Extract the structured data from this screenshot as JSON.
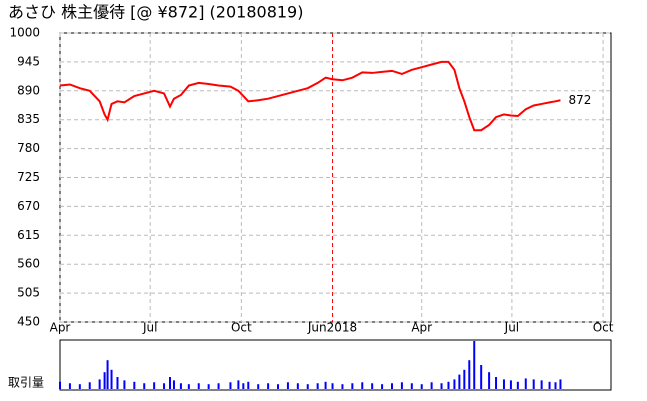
{
  "chart_data": [
    {
      "type": "line",
      "title": "あさひ 株主優待 [@ ¥872] (20180819)",
      "x": [
        0,
        10,
        20,
        30,
        40,
        45,
        48,
        52,
        58,
        65,
        75,
        85,
        95,
        105,
        111,
        115,
        122,
        130,
        140,
        150,
        160,
        172,
        180,
        185,
        190,
        200,
        210,
        220,
        230,
        240,
        250,
        260,
        268,
        275,
        285,
        295,
        305,
        315,
        325,
        335,
        345,
        355,
        365,
        375,
        385,
        392,
        398,
        403,
        408,
        413,
        418,
        425,
        433,
        440,
        448,
        455,
        462,
        470,
        478,
        486,
        494,
        500,
        505
      ],
      "series": [
        {
          "name": "price",
          "color": "#ff0000",
          "values": [
            900,
            902,
            895,
            890,
            870,
            845,
            835,
            865,
            870,
            868,
            880,
            885,
            890,
            885,
            860,
            875,
            882,
            900,
            905,
            903,
            900,
            898,
            890,
            880,
            870,
            872,
            875,
            880,
            885,
            890,
            895,
            905,
            915,
            912,
            910,
            915,
            925,
            924,
            926,
            928,
            922,
            930,
            935,
            940,
            945,
            945,
            930,
            895,
            870,
            840,
            815,
            815,
            825,
            840,
            845,
            843,
            842,
            855,
            862,
            865,
            868,
            870,
            872
          ]
        }
      ],
      "xlim": [
        0,
        556
      ],
      "xticks": [
        {
          "value": 0,
          "label": "Apr"
        },
        {
          "value": 91,
          "label": "Jul"
        },
        {
          "value": 183,
          "label": "Oct"
        },
        {
          "value": 275,
          "label": "Jun2018"
        },
        {
          "value": 365,
          "label": "Apr"
        },
        {
          "value": 456,
          "label": "Jul"
        },
        {
          "value": 548,
          "label": "Oct"
        }
      ],
      "highlight_xtick": 3,
      "ylim": [
        450,
        1000
      ],
      "yticks": [
        450,
        505,
        560,
        615,
        670,
        725,
        780,
        835,
        890,
        945,
        1000
      ],
      "grid": true
    },
    {
      "type": "bar",
      "y_label": "取引量",
      "color": "#0000ff",
      "x": [
        0,
        10,
        20,
        30,
        40,
        45,
        48,
        52,
        58,
        65,
        75,
        85,
        95,
        105,
        111,
        115,
        122,
        130,
        140,
        150,
        160,
        172,
        180,
        185,
        190,
        200,
        210,
        220,
        230,
        240,
        250,
        260,
        268,
        275,
        285,
        295,
        305,
        315,
        325,
        335,
        345,
        355,
        365,
        375,
        385,
        392,
        398,
        403,
        408,
        413,
        418,
        425,
        433,
        440,
        448,
        455,
        462,
        470,
        478,
        486,
        494,
        500,
        505
      ],
      "values": [
        15,
        12,
        10,
        14,
        20,
        35,
        60,
        40,
        25,
        18,
        15,
        12,
        14,
        12,
        25,
        18,
        12,
        10,
        12,
        10,
        12,
        14,
        18,
        12,
        15,
        10,
        12,
        10,
        14,
        12,
        10,
        12,
        15,
        12,
        10,
        12,
        14,
        12,
        10,
        12,
        14,
        12,
        10,
        14,
        12,
        15,
        20,
        30,
        40,
        60,
        100,
        50,
        35,
        25,
        20,
        18,
        15,
        22,
        20,
        18,
        15,
        14,
        20
      ],
      "xlim": [
        0,
        556
      ],
      "ylim": [
        0,
        100
      ]
    }
  ]
}
